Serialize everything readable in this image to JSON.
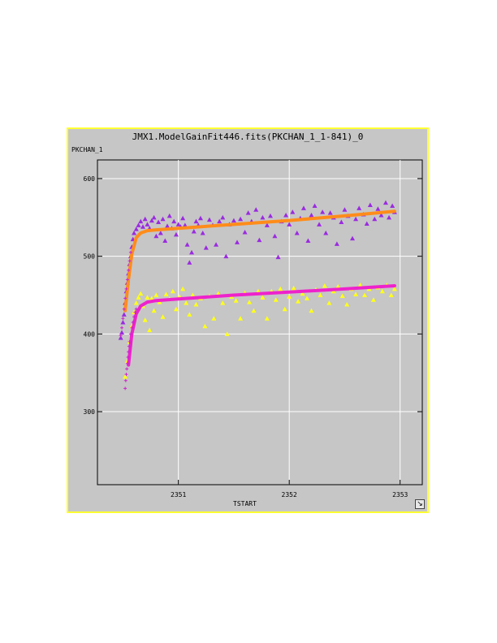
{
  "window": {
    "title": "JMX1.ModelGainFit446.fits(PKCHAN_1_1-841)_0"
  },
  "icons": {
    "resize": "resize-icon"
  },
  "chart_data": {
    "type": "scatter",
    "title": "JMX1.ModelGainFit446.fits(PKCHAN_1_1-841)_0",
    "xlabel": "TSTART",
    "ylabel": "PKCHAN_1",
    "xlim": [
      2350.27,
      2353.2
    ],
    "ylim": [
      206,
      624
    ],
    "xticks": [
      2351,
      2352,
      2353
    ],
    "yticks": [
      300,
      400,
      500,
      600
    ],
    "grid": true,
    "background": "#c6c6c6",
    "frame_color": "#ffff33",
    "series": [
      {
        "kind": "scatter",
        "color": "#9a2be0",
        "points": [
          [
            2350.48,
            395
          ],
          [
            2350.49,
            402
          ],
          [
            2350.5,
            415
          ],
          [
            2350.51,
            425
          ],
          [
            2350.52,
            440
          ],
          [
            2350.53,
            455
          ],
          [
            2350.54,
            466
          ],
          [
            2350.55,
            478
          ],
          [
            2350.56,
            490
          ],
          [
            2350.57,
            500
          ],
          [
            2350.58,
            512
          ],
          [
            2350.59,
            522
          ],
          [
            2350.6,
            530
          ],
          [
            2350.62,
            535
          ],
          [
            2350.64,
            540
          ],
          [
            2350.66,
            545
          ],
          [
            2350.68,
            538
          ],
          [
            2350.7,
            548
          ],
          [
            2350.72,
            541
          ],
          [
            2350.74,
            536
          ],
          [
            2350.76,
            546
          ],
          [
            2350.78,
            550
          ],
          [
            2350.8,
            526
          ],
          [
            2350.82,
            544
          ],
          [
            2350.84,
            530
          ],
          [
            2350.86,
            548
          ],
          [
            2350.88,
            520
          ],
          [
            2350.9,
            539
          ],
          [
            2350.92,
            552
          ],
          [
            2350.94,
            536
          ],
          [
            2350.96,
            545
          ],
          [
            2350.98,
            528
          ],
          [
            2351.0,
            541
          ],
          [
            2351.02,
            538
          ],
          [
            2351.04,
            549
          ],
          [
            2351.06,
            540
          ],
          [
            2351.08,
            515
          ],
          [
            2351.1,
            492
          ],
          [
            2351.12,
            505
          ],
          [
            2351.14,
            532
          ],
          [
            2351.16,
            545
          ],
          [
            2351.18,
            540
          ],
          [
            2351.2,
            549
          ],
          [
            2351.22,
            530
          ],
          [
            2351.25,
            511
          ],
          [
            2351.28,
            547
          ],
          [
            2351.31,
            540
          ],
          [
            2351.34,
            515
          ],
          [
            2351.37,
            545
          ],
          [
            2351.4,
            550
          ],
          [
            2351.43,
            500
          ],
          [
            2351.46,
            541
          ],
          [
            2351.5,
            546
          ],
          [
            2351.53,
            518
          ],
          [
            2351.56,
            548
          ],
          [
            2351.6,
            531
          ],
          [
            2351.63,
            556
          ],
          [
            2351.66,
            545
          ],
          [
            2351.7,
            560
          ],
          [
            2351.73,
            521
          ],
          [
            2351.76,
            550
          ],
          [
            2351.8,
            540
          ],
          [
            2351.83,
            552
          ],
          [
            2351.87,
            526
          ],
          [
            2351.9,
            499
          ],
          [
            2351.93,
            545
          ],
          [
            2351.97,
            553
          ],
          [
            2352.0,
            541
          ],
          [
            2352.03,
            557
          ],
          [
            2352.07,
            530
          ],
          [
            2352.1,
            549
          ],
          [
            2352.13,
            562
          ],
          [
            2352.17,
            520
          ],
          [
            2352.2,
            553
          ],
          [
            2352.23,
            565
          ],
          [
            2352.27,
            541
          ],
          [
            2352.3,
            557
          ],
          [
            2352.33,
            530
          ],
          [
            2352.37,
            556
          ],
          [
            2352.4,
            550
          ],
          [
            2352.43,
            516
          ],
          [
            2352.47,
            544
          ],
          [
            2352.5,
            560
          ],
          [
            2352.53,
            552
          ],
          [
            2352.57,
            523
          ],
          [
            2352.6,
            548
          ],
          [
            2352.63,
            562
          ],
          [
            2352.67,
            554
          ],
          [
            2352.7,
            542
          ],
          [
            2352.73,
            566
          ],
          [
            2352.77,
            548
          ],
          [
            2352.8,
            561
          ],
          [
            2352.83,
            553
          ],
          [
            2352.87,
            569
          ],
          [
            2352.9,
            550
          ],
          [
            2352.93,
            565
          ],
          [
            2352.95,
            557
          ]
        ]
      },
      {
        "kind": "scatter",
        "color": "#ffff1a",
        "points": [
          [
            2350.52,
            345
          ],
          [
            2350.54,
            365
          ],
          [
            2350.56,
            390
          ],
          [
            2350.58,
            410
          ],
          [
            2350.6,
            428
          ],
          [
            2350.62,
            440
          ],
          [
            2350.64,
            447
          ],
          [
            2350.66,
            452
          ],
          [
            2350.68,
            436
          ],
          [
            2350.7,
            418
          ],
          [
            2350.72,
            447
          ],
          [
            2350.74,
            405
          ],
          [
            2350.76,
            446
          ],
          [
            2350.78,
            430
          ],
          [
            2350.8,
            450
          ],
          [
            2350.83,
            441
          ],
          [
            2350.86,
            422
          ],
          [
            2350.89,
            451
          ],
          [
            2350.92,
            445
          ],
          [
            2350.95,
            455
          ],
          [
            2350.98,
            432
          ],
          [
            2351.01,
            448
          ],
          [
            2351.04,
            458
          ],
          [
            2351.07,
            440
          ],
          [
            2351.1,
            425
          ],
          [
            2351.13,
            450
          ],
          [
            2351.16,
            438
          ],
          [
            2351.2,
            446
          ],
          [
            2351.24,
            410
          ],
          [
            2351.28,
            449
          ],
          [
            2351.32,
            420
          ],
          [
            2351.36,
            452
          ],
          [
            2351.4,
            440
          ],
          [
            2351.44,
            400
          ],
          [
            2351.48,
            448
          ],
          [
            2351.52,
            443
          ],
          [
            2351.56,
            420
          ],
          [
            2351.6,
            453
          ],
          [
            2351.64,
            441
          ],
          [
            2351.68,
            430
          ],
          [
            2351.72,
            455
          ],
          [
            2351.76,
            447
          ],
          [
            2351.8,
            420
          ],
          [
            2351.84,
            455
          ],
          [
            2351.88,
            444
          ],
          [
            2351.92,
            458
          ],
          [
            2351.96,
            432
          ],
          [
            2352.0,
            448
          ],
          [
            2352.04,
            459
          ],
          [
            2352.08,
            442
          ],
          [
            2352.12,
            452
          ],
          [
            2352.16,
            446
          ],
          [
            2352.2,
            430
          ],
          [
            2352.24,
            457
          ],
          [
            2352.28,
            450
          ],
          [
            2352.32,
            462
          ],
          [
            2352.36,
            440
          ],
          [
            2352.4,
            455
          ],
          [
            2352.44,
            461
          ],
          [
            2352.48,
            449
          ],
          [
            2352.52,
            438
          ],
          [
            2352.56,
            458
          ],
          [
            2352.6,
            451
          ],
          [
            2352.64,
            463
          ],
          [
            2352.68,
            450
          ],
          [
            2352.72,
            458
          ],
          [
            2352.76,
            444
          ],
          [
            2352.8,
            460
          ],
          [
            2352.84,
            455
          ],
          [
            2352.88,
            463
          ],
          [
            2352.92,
            450
          ],
          [
            2352.95,
            458
          ]
        ]
      },
      {
        "kind": "fit",
        "color": "#ff8c1a",
        "line_width": 4,
        "points": [
          [
            2350.52,
            430
          ],
          [
            2350.55,
            470
          ],
          [
            2350.58,
            503
          ],
          [
            2350.62,
            524
          ],
          [
            2350.66,
            530
          ],
          [
            2350.72,
            533
          ],
          [
            2350.8,
            534
          ],
          [
            2351.0,
            536
          ],
          [
            2351.5,
            541
          ],
          [
            2352.0,
            546
          ],
          [
            2352.5,
            552
          ],
          [
            2352.95,
            558
          ]
        ]
      },
      {
        "kind": "fit",
        "color": "#ee22cc",
        "line_width": 4,
        "points": [
          [
            2350.55,
            360
          ],
          [
            2350.58,
            400
          ],
          [
            2350.62,
            426
          ],
          [
            2350.66,
            436
          ],
          [
            2350.72,
            441
          ],
          [
            2350.8,
            443
          ],
          [
            2351.0,
            445
          ],
          [
            2351.5,
            450
          ],
          [
            2352.0,
            454
          ],
          [
            2352.5,
            458
          ],
          [
            2352.95,
            462
          ]
        ]
      },
      {
        "kind": "plus",
        "color": "#cc22cc",
        "points": [
          [
            2350.52,
            330
          ],
          [
            2350.525,
            340
          ],
          [
            2350.53,
            348
          ],
          [
            2350.535,
            355
          ],
          [
            2350.54,
            362
          ],
          [
            2350.545,
            370
          ],
          [
            2350.55,
            377
          ],
          [
            2350.555,
            384
          ],
          [
            2350.56,
            390
          ],
          [
            2350.57,
            400
          ],
          [
            2350.58,
            408
          ],
          [
            2350.59,
            415
          ],
          [
            2350.6,
            422
          ],
          [
            2350.61,
            428
          ],
          [
            2350.62,
            432
          ],
          [
            2350.48,
            398
          ],
          [
            2350.49,
            408
          ],
          [
            2350.5,
            420
          ],
          [
            2350.51,
            432
          ],
          [
            2350.52,
            446
          ],
          [
            2350.53,
            458
          ],
          [
            2350.54,
            470
          ],
          [
            2350.55,
            482
          ],
          [
            2350.56,
            494
          ],
          [
            2350.57,
            505
          ]
        ]
      }
    ]
  }
}
